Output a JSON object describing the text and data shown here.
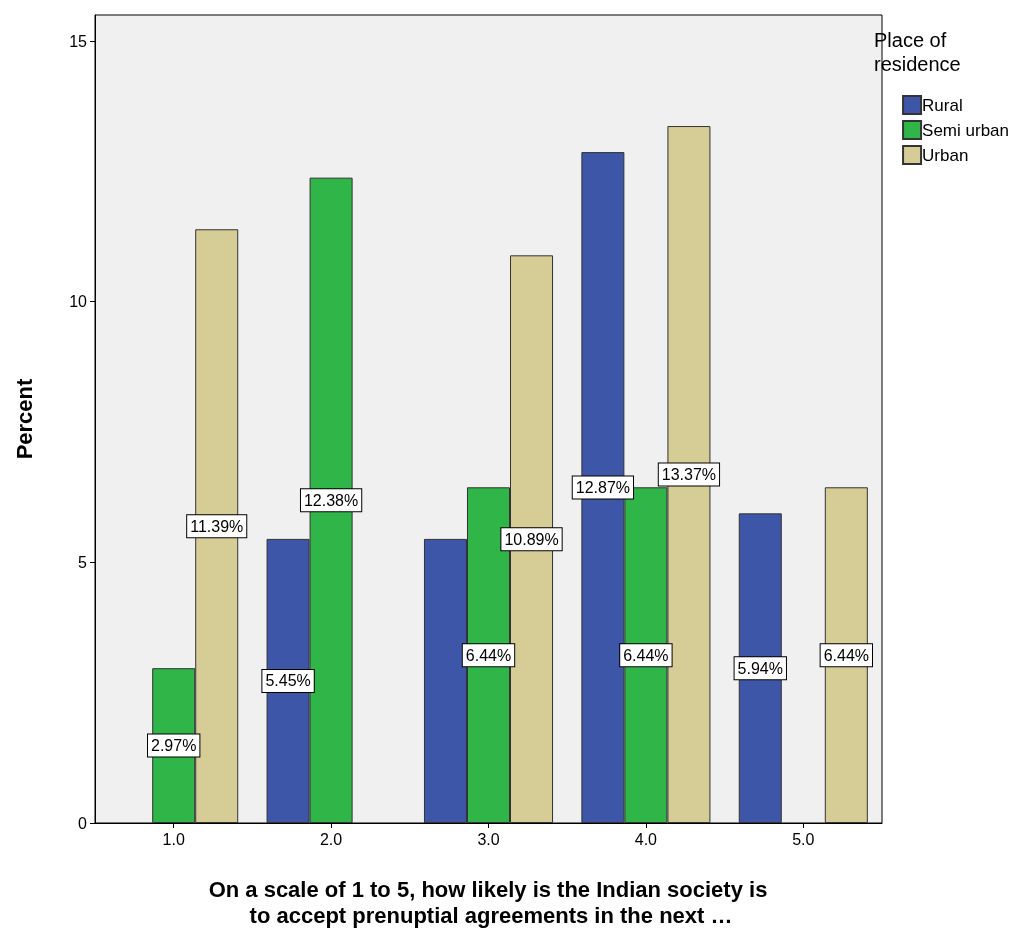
{
  "chart_data": {
    "type": "bar",
    "xlabel": "On a scale of 1 to 5, how likely is the Indian society is to accept prenuptial agreements in the next …",
    "ylabel": "Percent",
    "legend_title": "Place of residence",
    "categories": [
      "1.0",
      "2.0",
      "3.0",
      "4.0",
      "5.0"
    ],
    "series": [
      {
        "name": "Rural",
        "color": "#3e56a8",
        "values": [
          null,
          5.45,
          5.45,
          12.87,
          5.94
        ],
        "value_labels": [
          null,
          "5.45%",
          null,
          "12.87%",
          "5.94%"
        ]
      },
      {
        "name": "Semi urban",
        "color": "#2fb548",
        "values": [
          2.97,
          12.38,
          6.44,
          6.44,
          null
        ],
        "value_labels": [
          "2.97%",
          "12.38%",
          "6.44%",
          "6.44%",
          null
        ]
      },
      {
        "name": "Urban",
        "color": "#d6cc96",
        "values": [
          11.39,
          null,
          10.89,
          13.37,
          6.44
        ],
        "value_labels": [
          "11.39%",
          null,
          "10.89%",
          "13.37%",
          "6.44%"
        ]
      }
    ],
    "ylim": [
      0,
      15.5
    ],
    "yticks": [
      0,
      5,
      10,
      15
    ],
    "grid": false,
    "legend": "top right"
  }
}
